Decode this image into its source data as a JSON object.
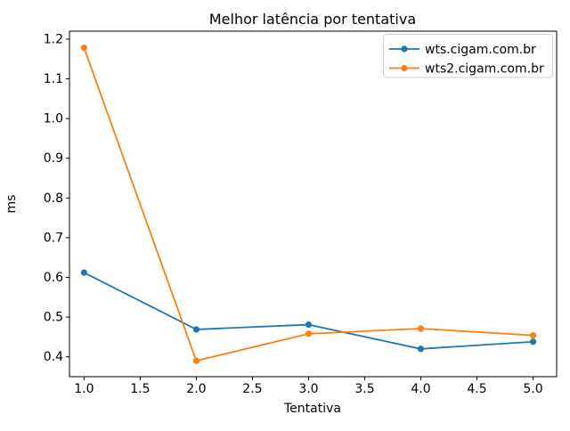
{
  "chart_data": {
    "type": "line",
    "title": "Melhor latência por tentativa",
    "xlabel": "Tentativa",
    "ylabel": "ms",
    "x": [
      1,
      2,
      3,
      4,
      5
    ],
    "series": [
      {
        "name": "wts.cigam.com.br",
        "color": "#1f77b4",
        "marker": "circle",
        "values": [
          0.612,
          0.469,
          0.481,
          0.42,
          0.438
        ]
      },
      {
        "name": "wts2.cigam.com.br",
        "color": "#ff7f0e",
        "marker": "circle",
        "values": [
          1.178,
          0.39,
          0.458,
          0.471,
          0.454
        ]
      }
    ],
    "xlim": [
      0.87,
      5.21
    ],
    "ylim": [
      0.35,
      1.22
    ],
    "xticks": [
      1.0,
      1.5,
      2.0,
      2.5,
      3.0,
      3.5,
      4.0,
      4.5,
      5.0
    ],
    "xtick_labels": [
      "1.0",
      "1.5",
      "2.0",
      "2.5",
      "3.0",
      "3.5",
      "4.0",
      "4.5",
      "5.0"
    ],
    "yticks": [
      0.4,
      0.5,
      0.6,
      0.7,
      0.8,
      0.9,
      1.0,
      1.1,
      1.2
    ],
    "ytick_labels": [
      "0.4",
      "0.5",
      "0.6",
      "0.7",
      "0.8",
      "0.9",
      "1.0",
      "1.1",
      "1.2"
    ],
    "grid": false,
    "legend_position": "upper right",
    "legend_border_color": "#cccccc",
    "axis_color": "#000000",
    "text_color": "#000000",
    "background": "#ffffff"
  }
}
